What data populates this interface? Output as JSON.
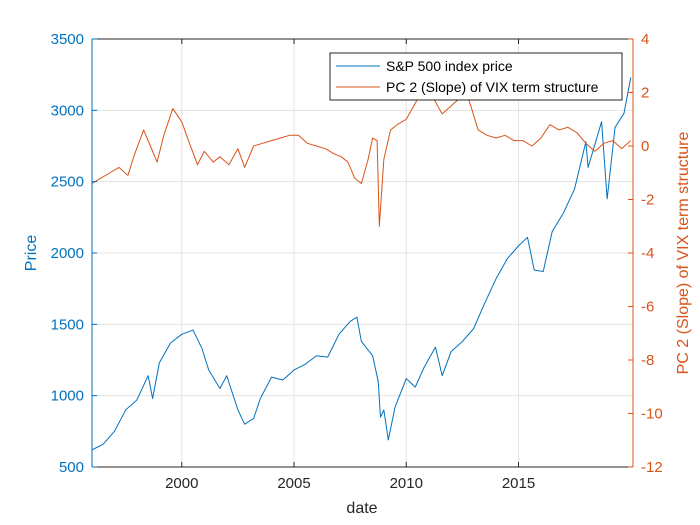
{
  "chart_data": {
    "type": "line",
    "title": "",
    "xlabel": "date",
    "ylabel": "Price",
    "y2label": "PC 2 (Slope) of VIX term structure",
    "xlim": [
      1996.0,
      2020.1
    ],
    "ylim": [
      500,
      3500
    ],
    "y2lim": [
      -12,
      4
    ],
    "xticks": [
      2000,
      2005,
      2010,
      2015
    ],
    "xtick_labels": [
      "2000",
      "2005",
      "2010",
      "2015"
    ],
    "yticks": [
      500,
      1000,
      1500,
      2000,
      2500,
      3000,
      3500
    ],
    "ytick_labels": [
      "500",
      "1000",
      "1500",
      "2000",
      "2500",
      "3000",
      "3500"
    ],
    "y2ticks": [
      -12,
      -10,
      -8,
      -6,
      -4,
      -2,
      0,
      2,
      4
    ],
    "y2tick_labels": [
      "-12",
      "-10",
      "-8",
      "-6",
      "-4",
      "-2",
      "0",
      "2",
      "4"
    ],
    "grid": true,
    "legend_position": "top-right",
    "colors": {
      "sp500": "#0072BD",
      "vix_slope": "#D95319",
      "axis": "#262626"
    },
    "series": [
      {
        "name": "S&P 500 index price",
        "axis": "left",
        "color": "#0072BD",
        "points": [
          [
            1996.0,
            620
          ],
          [
            1996.5,
            660
          ],
          [
            1997.0,
            750
          ],
          [
            1997.5,
            900
          ],
          [
            1998.0,
            970
          ],
          [
            1998.5,
            1140
          ],
          [
            1998.7,
            980
          ],
          [
            1999.0,
            1230
          ],
          [
            1999.5,
            1370
          ],
          [
            2000.0,
            1430
          ],
          [
            2000.5,
            1460
          ],
          [
            2000.9,
            1330
          ],
          [
            2001.2,
            1180
          ],
          [
            2001.7,
            1050
          ],
          [
            2002.0,
            1140
          ],
          [
            2002.5,
            900
          ],
          [
            2002.8,
            800
          ],
          [
            2003.2,
            840
          ],
          [
            2003.5,
            980
          ],
          [
            2004.0,
            1130
          ],
          [
            2004.5,
            1110
          ],
          [
            2005.0,
            1180
          ],
          [
            2005.5,
            1220
          ],
          [
            2006.0,
            1280
          ],
          [
            2006.5,
            1270
          ],
          [
            2007.0,
            1430
          ],
          [
            2007.5,
            1520
          ],
          [
            2007.8,
            1550
          ],
          [
            2008.0,
            1380
          ],
          [
            2008.5,
            1280
          ],
          [
            2008.75,
            1100
          ],
          [
            2008.85,
            850
          ],
          [
            2009.0,
            900
          ],
          [
            2009.2,
            690
          ],
          [
            2009.5,
            920
          ],
          [
            2010.0,
            1120
          ],
          [
            2010.4,
            1060
          ],
          [
            2010.8,
            1200
          ],
          [
            2011.3,
            1340
          ],
          [
            2011.6,
            1140
          ],
          [
            2012.0,
            1310
          ],
          [
            2012.5,
            1380
          ],
          [
            2013.0,
            1470
          ],
          [
            2013.5,
            1650
          ],
          [
            2014.0,
            1820
          ],
          [
            2014.5,
            1960
          ],
          [
            2015.0,
            2050
          ],
          [
            2015.4,
            2110
          ],
          [
            2015.7,
            1880
          ],
          [
            2016.1,
            1870
          ],
          [
            2016.5,
            2150
          ],
          [
            2017.0,
            2280
          ],
          [
            2017.5,
            2450
          ],
          [
            2018.0,
            2780
          ],
          [
            2018.1,
            2600
          ],
          [
            2018.7,
            2920
          ],
          [
            2018.95,
            2380
          ],
          [
            2019.3,
            2880
          ],
          [
            2019.7,
            2980
          ],
          [
            2020.0,
            3230
          ]
        ]
      },
      {
        "name": "PC 2 (Slope) of VIX term structure",
        "axis": "right",
        "color": "#D95319",
        "points": [
          [
            1996.0,
            -1.4
          ],
          [
            1996.4,
            -1.2
          ],
          [
            1996.8,
            -1.0
          ],
          [
            1997.2,
            -0.8
          ],
          [
            1997.6,
            -1.1
          ],
          [
            1997.9,
            -0.3
          ],
          [
            1998.3,
            0.6
          ],
          [
            1998.6,
            0.0
          ],
          [
            1998.9,
            -0.6
          ],
          [
            1999.2,
            0.4
          ],
          [
            1999.6,
            1.4
          ],
          [
            2000.0,
            0.9
          ],
          [
            2000.3,
            0.2
          ],
          [
            2000.7,
            -0.7
          ],
          [
            2001.0,
            -0.2
          ],
          [
            2001.4,
            -0.6
          ],
          [
            2001.7,
            -0.4
          ],
          [
            2002.1,
            -0.7
          ],
          [
            2002.5,
            -0.1
          ],
          [
            2002.8,
            -0.8
          ],
          [
            2003.2,
            0.0
          ],
          [
            2003.6,
            0.1
          ],
          [
            2004.0,
            0.2
          ],
          [
            2004.4,
            0.3
          ],
          [
            2004.8,
            0.4
          ],
          [
            2005.2,
            0.4
          ],
          [
            2005.6,
            0.1
          ],
          [
            2006.0,
            0.0
          ],
          [
            2006.4,
            -0.1
          ],
          [
            2006.8,
            -0.3
          ],
          [
            2007.1,
            -0.4
          ],
          [
            2007.4,
            -0.6
          ],
          [
            2007.7,
            -1.2
          ],
          [
            2008.0,
            -1.4
          ],
          [
            2008.3,
            -0.5
          ],
          [
            2008.5,
            0.3
          ],
          [
            2008.7,
            0.2
          ],
          [
            2008.8,
            -3.0
          ],
          [
            2009.0,
            -0.5
          ],
          [
            2009.3,
            0.6
          ],
          [
            2009.6,
            0.8
          ],
          [
            2010.0,
            1.0
          ],
          [
            2010.4,
            1.6
          ],
          [
            2010.8,
            2.2
          ],
          [
            2011.2,
            1.8
          ],
          [
            2011.6,
            1.2
          ],
          [
            2012.0,
            1.5
          ],
          [
            2012.4,
            1.8
          ],
          [
            2012.8,
            1.7
          ],
          [
            2013.2,
            0.6
          ],
          [
            2013.6,
            0.4
          ],
          [
            2014.0,
            0.3
          ],
          [
            2014.4,
            0.4
          ],
          [
            2014.8,
            0.2
          ],
          [
            2015.2,
            0.2
          ],
          [
            2015.6,
            0.0
          ],
          [
            2016.0,
            0.3
          ],
          [
            2016.4,
            0.8
          ],
          [
            2016.8,
            0.6
          ],
          [
            2017.2,
            0.7
          ],
          [
            2017.6,
            0.5
          ],
          [
            2018.0,
            0.1
          ],
          [
            2018.4,
            -0.2
          ],
          [
            2018.8,
            0.1
          ],
          [
            2019.2,
            0.2
          ],
          [
            2019.6,
            -0.1
          ],
          [
            2020.0,
            0.2
          ]
        ]
      }
    ],
    "annotations": []
  },
  "legend": {
    "items": [
      {
        "label": "S&P 500 index price",
        "color": "#0072BD"
      },
      {
        "label": "PC 2 (Slope) of VIX term structure",
        "color": "#D95319"
      }
    ]
  }
}
